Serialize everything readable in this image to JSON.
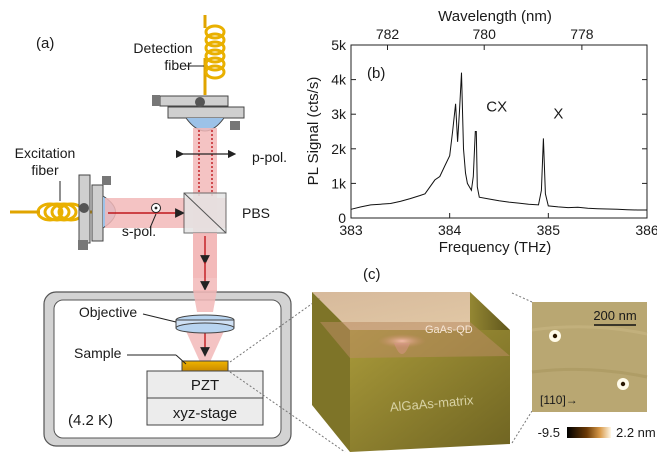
{
  "panel_a": {
    "label": "(a)",
    "detection_fiber": [
      "Detection",
      "fiber"
    ],
    "excitation_fiber": [
      "Excitation",
      "fiber"
    ],
    "p_pol": "p-pol.",
    "s_pol": "s-pol.",
    "pbs": "PBS",
    "objective": "Objective",
    "sample": "Sample",
    "pzt": "PZT",
    "stage": "xyz-stage",
    "temperature": "(4.2 K)"
  },
  "panel_c": {
    "label": "(c)",
    "qd_label": "GaAs-QD",
    "matrix_label": "AlGaAs-matrix",
    "scale_bar": "200 nm",
    "direction": "[110]→",
    "cbar_min": "-9.5",
    "cbar_max": "2.2 nm"
  },
  "chart_data": {
    "type": "line",
    "panel_label": "(b)",
    "xlabel": "Frequency (THz)",
    "ylabel": "PL Signal (cts/s)",
    "top_xlabel": "Wavelength (nm)",
    "xlim": [
      383,
      386
    ],
    "ylim": [
      0,
      5000
    ],
    "xticks": [
      "383",
      "384",
      "385",
      "386"
    ],
    "yticks": [
      "0",
      "1k",
      "2k",
      "3k",
      "4k",
      "5k"
    ],
    "top_ticks": [
      {
        "label": "782",
        "x": 383.37
      },
      {
        "label": "780",
        "x": 384.35
      },
      {
        "label": "778",
        "x": 385.34
      }
    ],
    "peaks": [
      {
        "label": "CX",
        "x": 384.27,
        "y": 2500
      },
      {
        "label": "X",
        "x": 384.95,
        "y": 2300
      }
    ],
    "x": [
      383.0,
      383.1,
      383.2,
      383.3,
      383.4,
      383.5,
      383.6,
      383.7,
      383.75,
      383.8,
      383.85,
      383.9,
      383.95,
      384.0,
      384.03,
      384.06,
      384.08,
      384.1,
      384.12,
      384.14,
      384.16,
      384.18,
      384.2,
      384.22,
      384.24,
      384.26,
      384.27,
      384.28,
      384.3,
      384.4,
      384.5,
      384.6,
      384.7,
      384.8,
      384.9,
      384.93,
      384.95,
      384.97,
      385.0,
      385.1,
      385.2,
      385.3,
      385.4,
      385.5,
      385.6,
      385.7,
      385.8,
      385.9,
      386.0
    ],
    "y": [
      250,
      320,
      380,
      400,
      420,
      480,
      560,
      650,
      700,
      900,
      1100,
      1200,
      1500,
      1800,
      2500,
      3300,
      2200,
      3100,
      4200,
      2000,
      1300,
      1000,
      900,
      800,
      1200,
      2500,
      2500,
      900,
      600,
      550,
      500,
      460,
      430,
      400,
      380,
      800,
      2300,
      700,
      350,
      320,
      300,
      310,
      280,
      270,
      260,
      250,
      240,
      230,
      230
    ]
  }
}
